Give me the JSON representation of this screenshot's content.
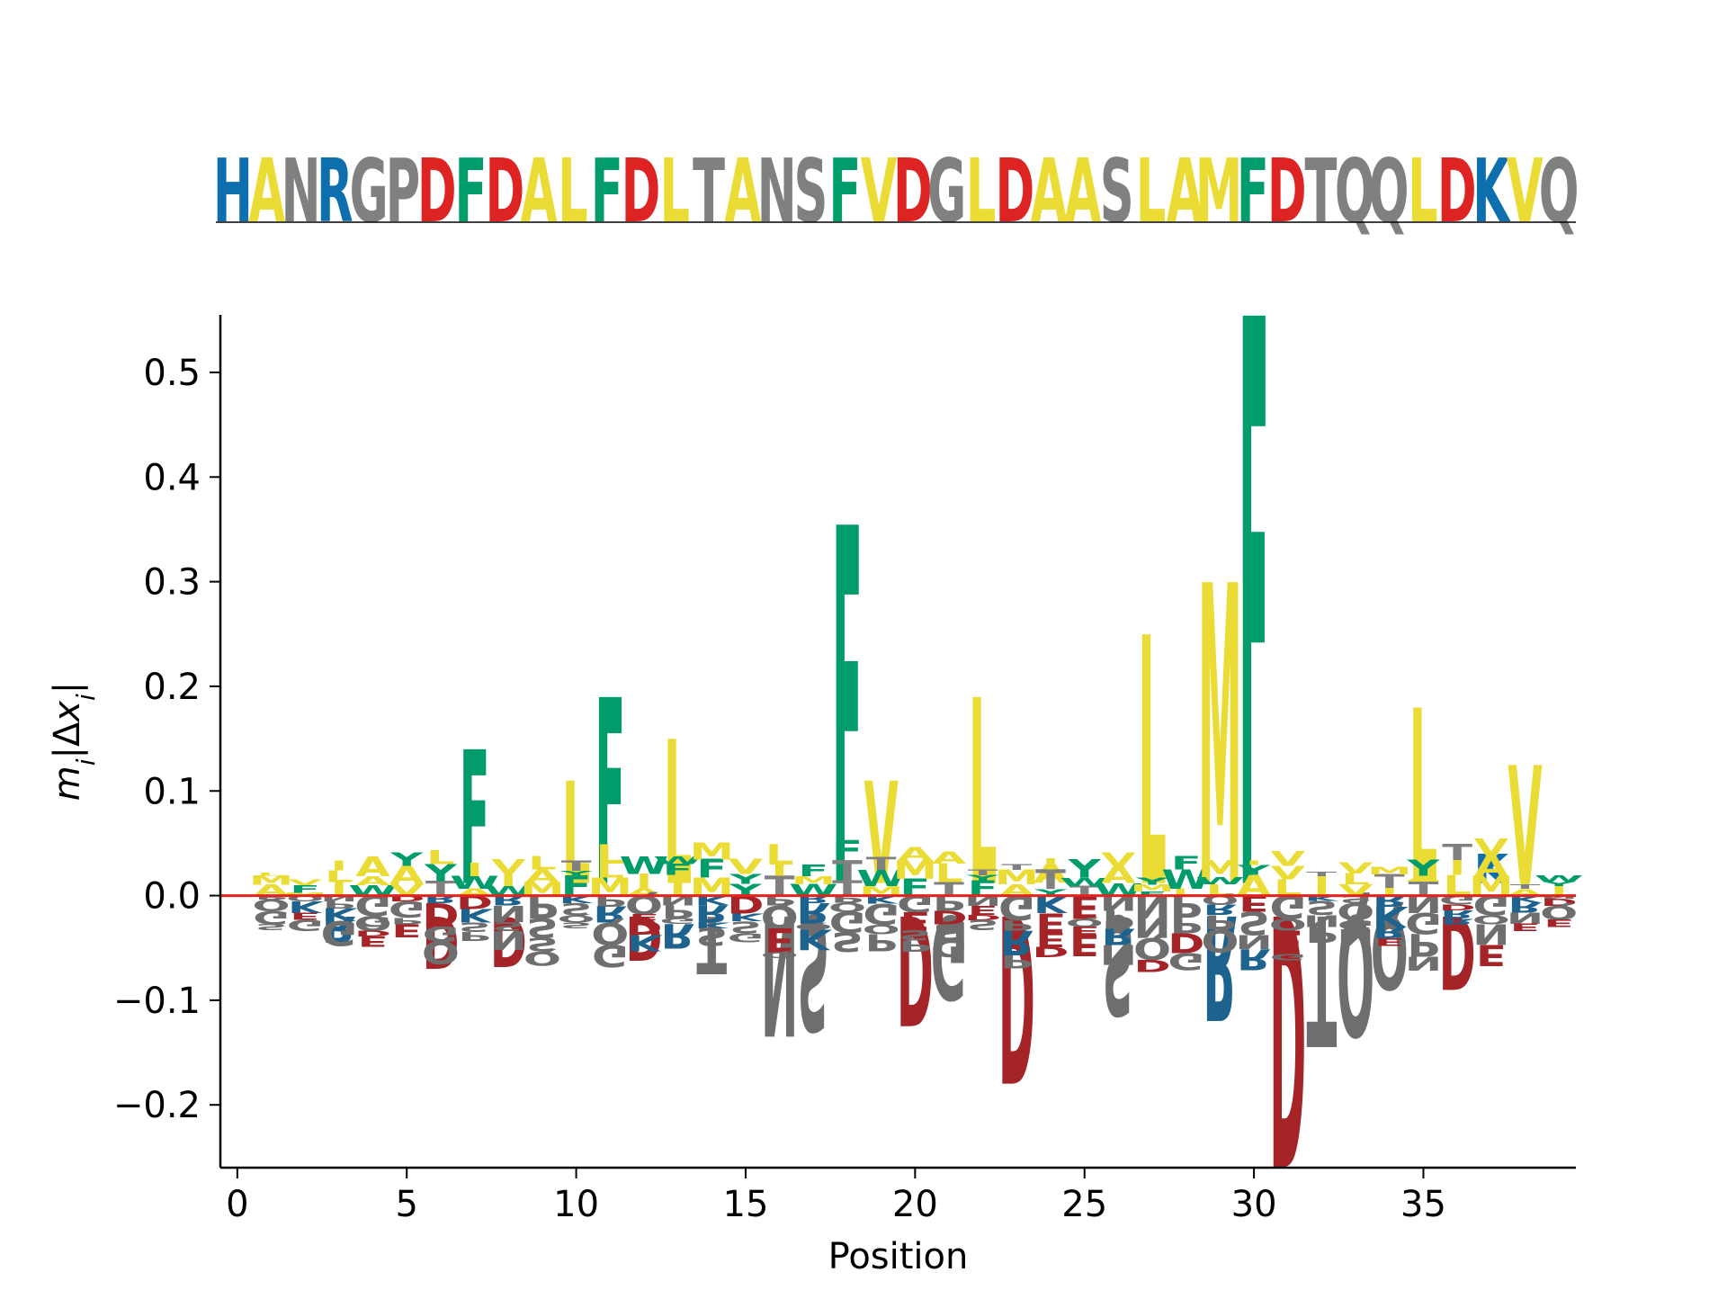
{
  "sequence": "HANRGPDFDALFDLTANSFVDGLDAASLAMFDTQQLDKVQ",
  "colors": {
    "hydrophobic": "#ebdc35",
    "aromatic": "#009c6b",
    "acidic": "#de2323",
    "basic": "#0d6fae",
    "other": "#808080",
    "baseline": "#e8201e",
    "negative_acidic": "#a52428",
    "negative_basic": "#1d638e",
    "negative_other": "#6e6e6e"
  },
  "chart_data": {
    "type": "sequence-logo",
    "xlabel": "Position",
    "ylabel": "m_i|Δx_i|",
    "xlim": [
      -0.5,
      39.5
    ],
    "ylim": [
      -0.26,
      0.555
    ],
    "xticks": [
      0,
      5,
      10,
      15,
      20,
      25,
      30,
      35
    ],
    "yticks": [
      -0.2,
      -0.1,
      0.0,
      0.1,
      0.2,
      0.3,
      0.4,
      0.5
    ],
    "ytick_labels": [
      "−0.2",
      "−0.1",
      "0.0",
      "0.1",
      "0.2",
      "0.3",
      "0.4",
      "0.5"
    ],
    "positive": [
      {
        "pos": 7,
        "letters": [
          {
            "c": "F",
            "v": 0.14
          }
        ]
      },
      {
        "pos": 10,
        "letters": [
          {
            "c": "L",
            "v": 0.11
          }
        ]
      },
      {
        "pos": 11,
        "letters": [
          {
            "c": "F",
            "v": 0.19
          }
        ]
      },
      {
        "pos": 13,
        "letters": [
          {
            "c": "L",
            "v": 0.15
          }
        ]
      },
      {
        "pos": 18,
        "letters": [
          {
            "c": "F",
            "v": 0.355
          }
        ]
      },
      {
        "pos": 19,
        "letters": [
          {
            "c": "V",
            "v": 0.11
          }
        ]
      },
      {
        "pos": 22,
        "letters": [
          {
            "c": "L",
            "v": 0.19
          }
        ]
      },
      {
        "pos": 24,
        "letters": [
          {
            "c": "A",
            "v": 0.03
          }
        ]
      },
      {
        "pos": 27,
        "letters": [
          {
            "c": "L",
            "v": 0.25
          }
        ]
      },
      {
        "pos": 29,
        "letters": [
          {
            "c": "M",
            "v": 0.3
          }
        ]
      },
      {
        "pos": 30,
        "letters": [
          {
            "c": "F",
            "v": 0.555
          }
        ]
      },
      {
        "pos": 35,
        "letters": [
          {
            "c": "L",
            "v": 0.18
          }
        ]
      },
      {
        "pos": 37,
        "letters": [
          {
            "c": "K",
            "v": 0.04
          }
        ]
      },
      {
        "pos": 38,
        "letters": [
          {
            "c": "V",
            "v": 0.125
          }
        ]
      }
    ],
    "negative": [
      {
        "pos": 3,
        "letters": [
          {
            "c": "R",
            "v": 0.045
          }
        ]
      },
      {
        "pos": 4,
        "letters": [
          {
            "c": "G",
            "v": 0.03
          }
        ]
      },
      {
        "pos": 6,
        "letters": [
          {
            "c": "D",
            "v": 0.07
          }
        ]
      },
      {
        "pos": 8,
        "letters": [
          {
            "c": "D",
            "v": 0.068
          }
        ]
      },
      {
        "pos": 12,
        "letters": [
          {
            "c": "D",
            "v": 0.062
          }
        ]
      },
      {
        "pos": 14,
        "letters": [
          {
            "c": "T",
            "v": 0.075
          }
        ]
      },
      {
        "pos": 16,
        "letters": [
          {
            "c": "N",
            "v": 0.135
          }
        ]
      },
      {
        "pos": 17,
        "letters": [
          {
            "c": "S",
            "v": 0.13
          }
        ]
      },
      {
        "pos": 20,
        "letters": [
          {
            "c": "D",
            "v": 0.125
          }
        ]
      },
      {
        "pos": 21,
        "letters": [
          {
            "c": "G",
            "v": 0.1
          }
        ]
      },
      {
        "pos": 23,
        "letters": [
          {
            "c": "D",
            "v": 0.18
          }
        ]
      },
      {
        "pos": 26,
        "letters": [
          {
            "c": "S",
            "v": 0.115
          }
        ]
      },
      {
        "pos": 29,
        "letters": [
          {
            "c": "R",
            "v": 0.12
          }
        ]
      },
      {
        "pos": 31,
        "letters": [
          {
            "c": "D",
            "v": 0.26
          }
        ]
      },
      {
        "pos": 32,
        "letters": [
          {
            "c": "T",
            "v": 0.145
          }
        ]
      },
      {
        "pos": 33,
        "letters": [
          {
            "c": "Q",
            "v": 0.135
          }
        ]
      },
      {
        "pos": 34,
        "letters": [
          {
            "c": "Q",
            "v": 0.09
          }
        ]
      },
      {
        "pos": 36,
        "letters": [
          {
            "c": "D",
            "v": 0.09
          }
        ]
      }
    ]
  }
}
